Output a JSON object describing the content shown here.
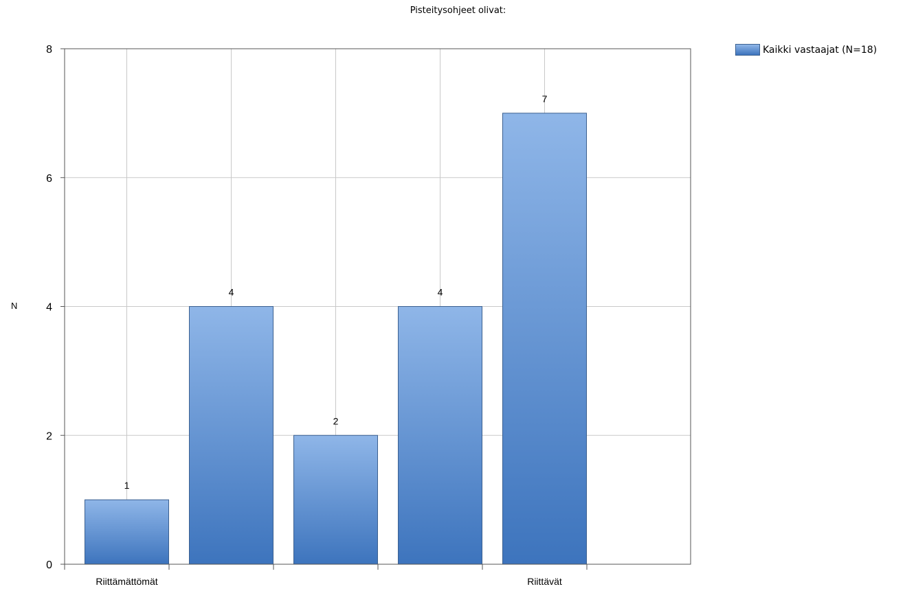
{
  "chart_data": {
    "type": "bar",
    "title": "Pisteitysohjeet olivat:",
    "ylabel": "N",
    "xlabel": "",
    "categories": [
      "Riittämättömät",
      "",
      "",
      "",
      "Riittävät"
    ],
    "series": [
      {
        "name": "Kaikki vastaajat (N=18)",
        "values": [
          1,
          4,
          2,
          4,
          7
        ]
      }
    ],
    "ylim": [
      0,
      8
    ],
    "yticks": [
      0,
      2,
      4,
      6,
      8
    ],
    "grid": true,
    "legend_position": "top-right",
    "colors": {
      "bar_top": "#8fb6e8",
      "bar_bottom": "#3d74bd",
      "bar_border": "#3a5f8f",
      "grid": "#c8c8c8",
      "axis": "#555555"
    }
  }
}
